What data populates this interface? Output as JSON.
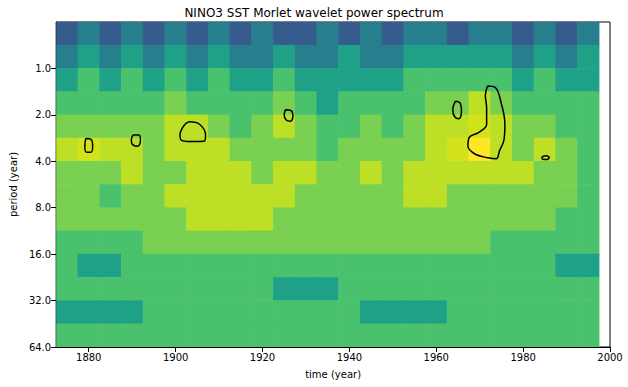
{
  "chart_data": {
    "type": "contourf",
    "title": "NINO3 SST Morlet wavelet power spectrum",
    "xlabel": "time (year)",
    "ylabel": "period (year)",
    "xlim": [
      1872.5,
      2000
    ],
    "xticks": [
      1880,
      1900,
      1920,
      1940,
      1960,
      1980,
      2000
    ],
    "ylim": [
      0.5,
      64
    ],
    "yticks": [
      {
        "value": 1,
        "label": "1.0"
      },
      {
        "value": 2,
        "label": "2.0"
      },
      {
        "value": 4,
        "label": "4.0"
      },
      {
        "value": 8,
        "label": "8.0"
      },
      {
        "value": 16,
        "label": "16.0"
      },
      {
        "value": 32,
        "label": "32.0"
      },
      {
        "value": 64,
        "label": "64.0"
      }
    ],
    "log": "y",
    "grid": false,
    "x_edges": [
      1872.5,
      1877.5,
      1882.5,
      1887.5,
      1892.5,
      1897.5,
      1902.5,
      1907.5,
      1912.5,
      1917.5,
      1922.5,
      1927.5,
      1932.5,
      1937.5,
      1942.5,
      1947.5,
      1952.5,
      1957.5,
      1962.5,
      1967.5,
      1972.5,
      1977.5,
      1982.5,
      1987.5,
      1992.5,
      1997.5
    ],
    "y_edges": [
      0.5,
      0.707,
      1,
      1.414,
      2,
      2.828,
      4,
      5.657,
      8,
      11.31,
      16,
      22.63,
      32,
      45.25,
      64
    ],
    "zlim": [
      0,
      9
    ],
    "z": [
      [
        2,
        3,
        2,
        3,
        2,
        3,
        2,
        3,
        2,
        3,
        2,
        2,
        3,
        2,
        3,
        2,
        3,
        3,
        2,
        3,
        3,
        2,
        3,
        2,
        3
      ],
      [
        3,
        4,
        3,
        4,
        3,
        4,
        3,
        4,
        3,
        3,
        4,
        3,
        3,
        4,
        3,
        3,
        4,
        4,
        4,
        4,
        4,
        3,
        4,
        3,
        4
      ],
      [
        4,
        5,
        4,
        5,
        4,
        5,
        4,
        5,
        4,
        4,
        5,
        4,
        4,
        4,
        4,
        4,
        5,
        5,
        5,
        5,
        5,
        4,
        5,
        4,
        4
      ],
      [
        5,
        5,
        5,
        5,
        5,
        6,
        5,
        5,
        5,
        5,
        6,
        5,
        4,
        5,
        5,
        5,
        5,
        6,
        6,
        7,
        6,
        5,
        5,
        5,
        5
      ],
      [
        6,
        6,
        6,
        6,
        6,
        7,
        7,
        6,
        5,
        6,
        7,
        6,
        5,
        5,
        6,
        5,
        6,
        7,
        7,
        8,
        7,
        6,
        6,
        5,
        5
      ],
      [
        7,
        8,
        7,
        7,
        6,
        7,
        7,
        7,
        6,
        6,
        6,
        6,
        5,
        6,
        6,
        6,
        6,
        7,
        8,
        9,
        7,
        6,
        7,
        6,
        5
      ],
      [
        6,
        6,
        6,
        7,
        6,
        6,
        7,
        7,
        7,
        6,
        7,
        7,
        6,
        6,
        7,
        6,
        7,
        7,
        7,
        7,
        7,
        7,
        6,
        6,
        5
      ],
      [
        6,
        6,
        5,
        6,
        6,
        7,
        7,
        7,
        7,
        7,
        7,
        6,
        6,
        6,
        6,
        6,
        7,
        7,
        6,
        6,
        6,
        6,
        6,
        6,
        5
      ],
      [
        6,
        6,
        6,
        6,
        6,
        6,
        7,
        7,
        7,
        7,
        6,
        6,
        6,
        6,
        6,
        6,
        6,
        6,
        6,
        6,
        6,
        6,
        6,
        5,
        5
      ],
      [
        5,
        5,
        5,
        5,
        6,
        6,
        6,
        6,
        6,
        6,
        6,
        6,
        6,
        6,
        6,
        6,
        6,
        6,
        6,
        6,
        5,
        5,
        5,
        5,
        5
      ],
      [
        5,
        4,
        4,
        5,
        5,
        5,
        5,
        5,
        5,
        5,
        5,
        5,
        5,
        5,
        5,
        5,
        5,
        5,
        5,
        5,
        5,
        5,
        5,
        4,
        4
      ],
      [
        5,
        5,
        5,
        5,
        5,
        5,
        5,
        5,
        5,
        5,
        4,
        4,
        4,
        5,
        5,
        5,
        5,
        5,
        5,
        5,
        5,
        5,
        5,
        5,
        5
      ],
      [
        4,
        4,
        4,
        4,
        5,
        5,
        5,
        5,
        5,
        5,
        5,
        5,
        5,
        5,
        4,
        4,
        4,
        4,
        5,
        5,
        5,
        5,
        5,
        5,
        5
      ],
      [
        5,
        5,
        5,
        5,
        5,
        5,
        5,
        5,
        5,
        5,
        5,
        5,
        5,
        5,
        5,
        5,
        5,
        5,
        5,
        5,
        5,
        5,
        5,
        5,
        5
      ]
    ],
    "contours": {
      "color": "#000000",
      "paths": [
        [
          [
            1879.3,
            2.85
          ],
          [
            1880.6,
            2.9
          ],
          [
            1880.9,
            3.2
          ],
          [
            1880.5,
            3.5
          ],
          [
            1879.5,
            3.5
          ],
          [
            1879.1,
            3.2
          ]
        ],
        [
          [
            1890.2,
            2.7
          ],
          [
            1891.6,
            2.7
          ],
          [
            1891.9,
            2.95
          ],
          [
            1891.2,
            3.2
          ],
          [
            1890.0,
            3.1
          ],
          [
            1889.8,
            2.9
          ]
        ],
        [
          [
            1901.5,
            2.45
          ],
          [
            1903.2,
            2.22
          ],
          [
            1905.5,
            2.3
          ],
          [
            1906.9,
            2.7
          ],
          [
            1906.5,
            2.97
          ],
          [
            1903.5,
            2.98
          ],
          [
            1901.2,
            2.9
          ],
          [
            1901.0,
            2.7
          ]
        ],
        [
          [
            1925.3,
            1.85
          ],
          [
            1926.6,
            1.88
          ],
          [
            1927.0,
            2.05
          ],
          [
            1926.4,
            2.2
          ],
          [
            1925.4,
            2.15
          ],
          [
            1925.0,
            2.0
          ]
        ],
        [
          [
            1964.4,
            1.63
          ],
          [
            1965.5,
            1.68
          ],
          [
            1965.8,
            1.9
          ],
          [
            1965.2,
            2.12
          ],
          [
            1964.2,
            2.05
          ],
          [
            1963.8,
            1.85
          ]
        ],
        [
          [
            1971.8,
            1.3
          ],
          [
            1973.6,
            1.33
          ],
          [
            1975.0,
            1.7
          ],
          [
            1975.8,
            2.3
          ],
          [
            1975.6,
            2.9
          ],
          [
            1974.6,
            3.4
          ],
          [
            1973.8,
            3.85
          ],
          [
            1972.0,
            3.8
          ],
          [
            1969.0,
            3.6
          ],
          [
            1967.3,
            3.2
          ],
          [
            1967.6,
            2.8
          ],
          [
            1969.8,
            2.6
          ],
          [
            1971.6,
            2.3
          ],
          [
            1971.6,
            1.8
          ],
          [
            1971.3,
            1.5
          ]
        ],
        [
          [
            1984.3,
            3.75
          ],
          [
            1985.3,
            3.68
          ],
          [
            1986.0,
            3.78
          ],
          [
            1985.4,
            3.9
          ],
          [
            1984.5,
            3.88
          ]
        ]
      ]
    }
  }
}
